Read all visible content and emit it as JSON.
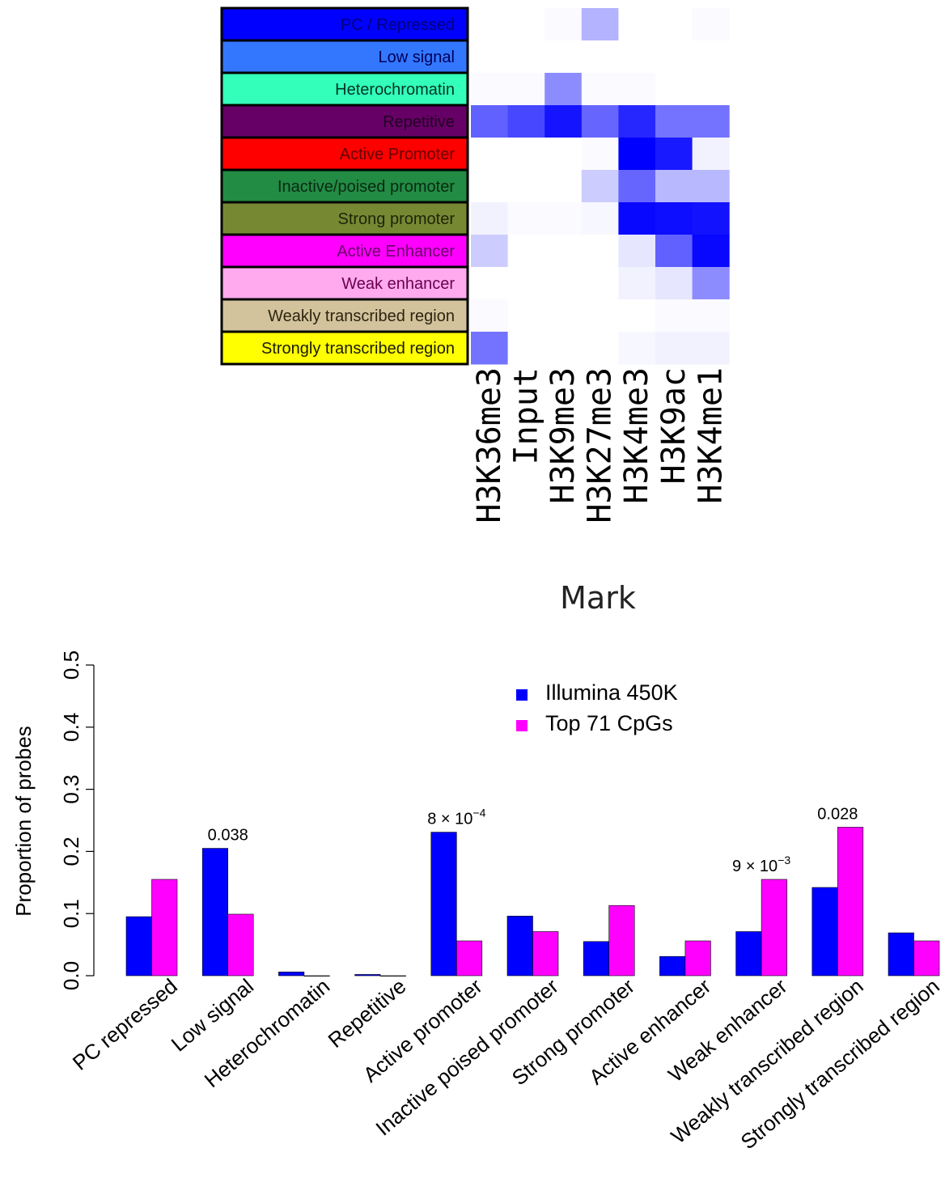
{
  "chart_data": [
    {
      "type": "heatmap",
      "xlabel": "Mark",
      "marks": [
        "H3K36me3",
        "Input",
        "H3K9me3",
        "H3K27me3",
        "H3K4me3",
        "H3K9ac",
        "H3K4me1"
      ],
      "states": [
        {
          "label": "PC / Repressed",
          "color": "#0000ff",
          "text_color": "#00007a"
        },
        {
          "label": "Low signal",
          "color": "#3377ff",
          "text_color": "#00005a"
        },
        {
          "label": "Heterochromatin",
          "color": "#33ffbb",
          "text_color": "#003322"
        },
        {
          "label": "Repetitive",
          "color": "#660066",
          "text_color": "#220022"
        },
        {
          "label": "Active Promoter",
          "color": "#ff0000",
          "text_color": "#660000"
        },
        {
          "label": "Inactive/poised promoter",
          "color": "#228b44",
          "text_color": "#0a2a12"
        },
        {
          "label": "Strong promoter",
          "color": "#778833",
          "text_color": "#1e2408"
        },
        {
          "label": "Active Enhancer",
          "color": "#ff00ff",
          "text_color": "#660066"
        },
        {
          "label": "Weak enhancer",
          "color": "#ffaaee",
          "text_color": "#6a0050"
        },
        {
          "label": "Weakly transcribed region",
          "color": "#d2c39c",
          "text_color": "#2c2410"
        },
        {
          "label": "Strongly transcribed region",
          "color": "#ffff00",
          "text_color": "#1a1a00"
        }
      ],
      "values": [
        [
          0.0,
          0.0,
          0.02,
          0.3,
          0.0,
          0.0,
          0.02
        ],
        [
          0.0,
          0.0,
          0.0,
          0.0,
          0.0,
          0.0,
          0.0
        ],
        [
          0.02,
          0.02,
          0.45,
          0.02,
          0.02,
          0.0,
          0.0
        ],
        [
          0.62,
          0.72,
          0.92,
          0.6,
          0.85,
          0.55,
          0.55
        ],
        [
          0.0,
          0.0,
          0.0,
          0.02,
          1.0,
          0.9,
          0.05
        ],
        [
          0.0,
          0.0,
          0.0,
          0.2,
          0.6,
          0.28,
          0.28
        ],
        [
          0.05,
          0.02,
          0.02,
          0.03,
          0.97,
          0.95,
          0.93
        ],
        [
          0.2,
          0.0,
          0.0,
          0.0,
          0.1,
          0.62,
          0.97
        ],
        [
          0.0,
          0.0,
          0.0,
          0.0,
          0.05,
          0.1,
          0.45
        ],
        [
          0.02,
          0.0,
          0.0,
          0.0,
          0.0,
          0.02,
          0.02
        ],
        [
          0.55,
          0.0,
          0.0,
          0.0,
          0.03,
          0.05,
          0.05
        ]
      ]
    },
    {
      "type": "bar",
      "ylabel": "Proportion of probes",
      "ylim": [
        0,
        0.5
      ],
      "yticks": [
        "0.0",
        "0.1",
        "0.2",
        "0.3",
        "0.4",
        "0.5"
      ],
      "categories": [
        "PC repressed",
        "Low signal",
        "Heterochromatin",
        "Repetitive",
        "Active promoter",
        "Inactive poised promoter",
        "Strong promoter",
        "Active enhancer",
        "Weak enhancer",
        "Weakly transcribed region",
        "Strongly transcribed region"
      ],
      "series": [
        {
          "name": "Illumina 450K",
          "color": "#0000ff",
          "values": [
            0.095,
            0.205,
            0.006,
            0.002,
            0.231,
            0.096,
            0.055,
            0.031,
            0.071,
            0.142,
            0.069
          ]
        },
        {
          "name": "Top 71 CpGs",
          "color": "#ff00ff",
          "values": [
            0.155,
            0.099,
            0.0,
            0.0,
            0.056,
            0.071,
            0.113,
            0.056,
            0.155,
            0.239,
            0.056
          ]
        }
      ],
      "annotations": [
        {
          "category": "Low signal",
          "text": "0.038"
        },
        {
          "category": "Active promoter",
          "base": "8 × 10",
          "exp": "−4"
        },
        {
          "category": "Weak enhancer",
          "base": "9 × 10",
          "exp": "−3"
        },
        {
          "category": "Weakly transcribed region",
          "text": "0.028"
        }
      ],
      "legend": "top-right"
    }
  ]
}
